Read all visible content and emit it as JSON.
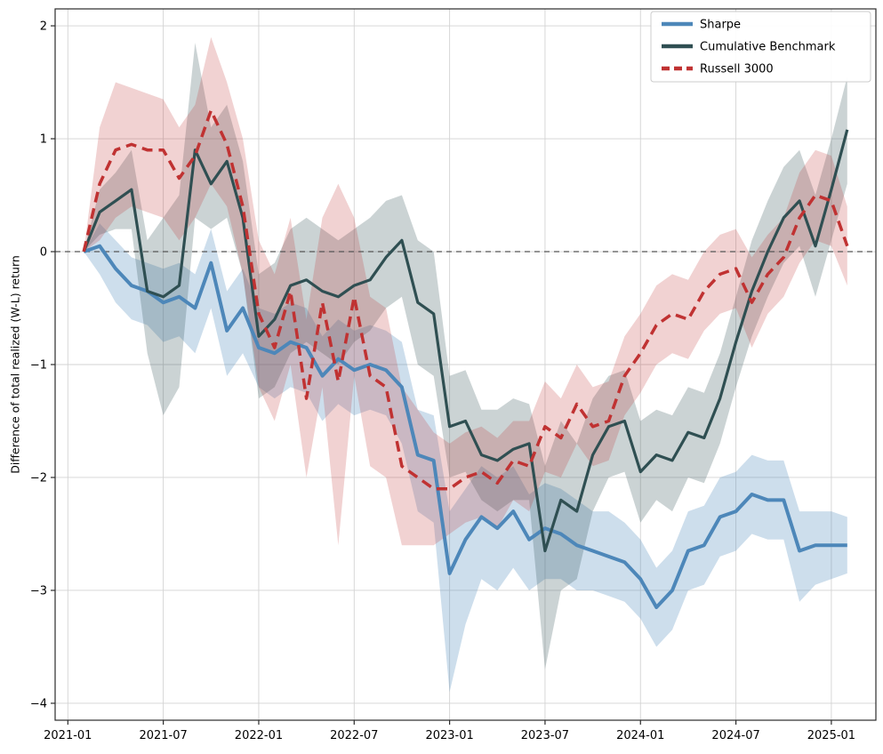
{
  "chart_data": {
    "type": "line",
    "ylabel": "Difference of total realized (W-L) return",
    "grid": true,
    "legend_position": "upper-right",
    "zero_line": 0,
    "zero_line_color": "#555555",
    "grid_color": "#d3d3d3",
    "spine_color": "#2b2b2b",
    "xlim": [
      -0.8,
      50.8
    ],
    "ylim": [
      -4.15,
      2.15
    ],
    "xticks": [
      {
        "pos": 0,
        "label": "2021-01"
      },
      {
        "pos": 6,
        "label": "2021-07"
      },
      {
        "pos": 12,
        "label": "2022-01"
      },
      {
        "pos": 18,
        "label": "2022-07"
      },
      {
        "pos": 24,
        "label": "2023-01"
      },
      {
        "pos": 30,
        "label": "2023-07"
      },
      {
        "pos": 36,
        "label": "2024-01"
      },
      {
        "pos": 42,
        "label": "2024-07"
      },
      {
        "pos": 48,
        "label": "2025-01"
      }
    ],
    "yticks": [
      {
        "value": 2,
        "label": "2"
      },
      {
        "value": 1,
        "label": "1"
      },
      {
        "value": 0,
        "label": "0"
      },
      {
        "value": -1,
        "label": "−1"
      },
      {
        "value": -2,
        "label": "−2"
      },
      {
        "value": -3,
        "label": "−3"
      },
      {
        "value": -4,
        "label": "−4"
      }
    ],
    "x_unit": "months-since-2021-01",
    "x": [
      1,
      2,
      3,
      4,
      5,
      6,
      7,
      8,
      9,
      10,
      11,
      12,
      13,
      14,
      15,
      16,
      17,
      18,
      19,
      20,
      21,
      22,
      23,
      24,
      25,
      26,
      27,
      28,
      29,
      30,
      31,
      32,
      33,
      34,
      35,
      36,
      37,
      38,
      39,
      40,
      41,
      42,
      43,
      44,
      45,
      46,
      47,
      48,
      49
    ],
    "series": [
      {
        "name": "Sharpe",
        "color": "#4d87b9",
        "line_width": 4,
        "dash": null,
        "band_opacity": 0.28,
        "values": [
          0.0,
          0.05,
          -0.15,
          -0.3,
          -0.35,
          -0.45,
          -0.4,
          -0.5,
          -0.1,
          -0.7,
          -0.5,
          -0.85,
          -0.9,
          -0.8,
          -0.85,
          -1.1,
          -0.95,
          -1.05,
          -1.0,
          -1.05,
          -1.2,
          -1.8,
          -1.85,
          -2.85,
          -2.55,
          -2.35,
          -2.45,
          -2.3,
          -2.55,
          -2.45,
          -2.5,
          -2.6,
          -2.65,
          -2.7,
          -2.75,
          -2.9,
          -3.15,
          -3.0,
          -2.65,
          -2.6,
          -2.35,
          -2.3,
          -2.15,
          -2.2,
          -2.2,
          -2.65,
          -2.6,
          -2.6,
          -2.6
        ],
        "band_lower": [
          0.0,
          -0.2,
          -0.45,
          -0.6,
          -0.65,
          -0.8,
          -0.75,
          -0.9,
          -0.5,
          -1.1,
          -0.9,
          -1.2,
          -1.3,
          -1.2,
          -1.25,
          -1.5,
          -1.35,
          -1.45,
          -1.4,
          -1.45,
          -1.7,
          -2.3,
          -2.4,
          -3.9,
          -3.3,
          -2.9,
          -3.0,
          -2.8,
          -3.0,
          -2.9,
          -2.9,
          -3.0,
          -3.0,
          -3.05,
          -3.1,
          -3.25,
          -3.5,
          -3.35,
          -3.0,
          -2.95,
          -2.7,
          -2.65,
          -2.5,
          -2.55,
          -2.55,
          -3.1,
          -2.95,
          -2.9,
          -2.85
        ],
        "band_upper": [
          0.0,
          0.25,
          0.1,
          -0.05,
          -0.1,
          -0.15,
          -0.1,
          -0.2,
          0.2,
          -0.35,
          -0.15,
          -0.5,
          -0.55,
          -0.45,
          -0.5,
          -0.75,
          -0.6,
          -0.7,
          -0.65,
          -0.7,
          -0.8,
          -1.4,
          -1.45,
          -2.3,
          -2.1,
          -1.9,
          -2.0,
          -1.9,
          -2.15,
          -2.05,
          -2.1,
          -2.2,
          -2.3,
          -2.3,
          -2.4,
          -2.55,
          -2.8,
          -2.65,
          -2.3,
          -2.25,
          -2.0,
          -1.95,
          -1.8,
          -1.85,
          -1.85,
          -2.3,
          -2.3,
          -2.3,
          -2.35
        ]
      },
      {
        "name": "Cumulative Benchmark",
        "color": "#2f4f52",
        "line_width": 3.2,
        "dash": null,
        "band_opacity": 0.25,
        "values": [
          0.0,
          0.35,
          0.45,
          0.55,
          -0.35,
          -0.4,
          -0.3,
          0.9,
          0.6,
          0.8,
          0.3,
          -0.75,
          -0.6,
          -0.3,
          -0.25,
          -0.35,
          -0.4,
          -0.3,
          -0.25,
          -0.05,
          0.1,
          -0.45,
          -0.55,
          -1.55,
          -1.5,
          -1.8,
          -1.85,
          -1.75,
          -1.7,
          -2.65,
          -2.2,
          -2.3,
          -1.8,
          -1.55,
          -1.5,
          -1.95,
          -1.8,
          -1.85,
          -1.6,
          -1.65,
          -1.3,
          -0.8,
          -0.35,
          0.0,
          0.3,
          0.45,
          0.05,
          0.55,
          1.08
        ],
        "band_lower": [
          0.0,
          0.15,
          0.2,
          0.2,
          -0.9,
          -1.45,
          -1.2,
          0.3,
          0.2,
          0.3,
          -0.2,
          -1.3,
          -1.2,
          -0.9,
          -0.8,
          -0.9,
          -1.0,
          -0.8,
          -0.7,
          -0.5,
          -0.4,
          -1.0,
          -1.1,
          -2.0,
          -1.95,
          -2.2,
          -2.3,
          -2.2,
          -2.2,
          -3.7,
          -3.0,
          -2.9,
          -2.3,
          -2.0,
          -1.95,
          -2.4,
          -2.2,
          -2.3,
          -2.0,
          -2.05,
          -1.7,
          -1.2,
          -0.75,
          -0.4,
          -0.1,
          0.05,
          -0.4,
          0.1,
          0.6
        ],
        "band_upper": [
          0.0,
          0.55,
          0.7,
          0.9,
          0.1,
          0.3,
          0.5,
          1.85,
          1.1,
          1.3,
          0.8,
          -0.2,
          -0.1,
          0.2,
          0.3,
          0.2,
          0.1,
          0.2,
          0.3,
          0.45,
          0.5,
          0.1,
          0.0,
          -1.1,
          -1.05,
          -1.4,
          -1.4,
          -1.3,
          -1.35,
          -1.9,
          -1.5,
          -1.7,
          -1.3,
          -1.1,
          -1.05,
          -1.5,
          -1.4,
          -1.45,
          -1.2,
          -1.25,
          -0.9,
          -0.4,
          0.1,
          0.45,
          0.75,
          0.9,
          0.5,
          1.0,
          1.55
        ]
      },
      {
        "name": "Russell 3000",
        "color": "#c03232",
        "line_width": 3.5,
        "dash": "12 7",
        "band_opacity": 0.22,
        "values": [
          0.0,
          0.6,
          0.9,
          0.95,
          0.9,
          0.9,
          0.65,
          0.85,
          1.25,
          0.95,
          0.4,
          -0.55,
          -0.85,
          -0.35,
          -1.3,
          -0.45,
          -1.15,
          -0.4,
          -1.1,
          -1.2,
          -1.9,
          -2.0,
          -2.1,
          -2.1,
          -2.0,
          -1.95,
          -2.05,
          -1.85,
          -1.9,
          -1.55,
          -1.65,
          -1.35,
          -1.55,
          -1.5,
          -1.1,
          -0.9,
          -0.65,
          -0.55,
          -0.6,
          -0.35,
          -0.2,
          -0.15,
          -0.45,
          -0.2,
          -0.05,
          0.3,
          0.5,
          0.45,
          0.05
        ],
        "band_lower": [
          0.0,
          0.1,
          0.3,
          0.4,
          0.35,
          0.3,
          0.1,
          0.3,
          0.6,
          0.4,
          -0.2,
          -1.2,
          -1.5,
          -1.0,
          -2.0,
          -1.2,
          -2.6,
          -1.1,
          -1.9,
          -2.0,
          -2.6,
          -2.6,
          -2.6,
          -2.5,
          -2.4,
          -2.35,
          -2.45,
          -2.2,
          -2.3,
          -1.95,
          -2.0,
          -1.7,
          -1.9,
          -1.85,
          -1.45,
          -1.25,
          -1.0,
          -0.9,
          -0.95,
          -0.7,
          -0.55,
          -0.5,
          -0.85,
          -0.55,
          -0.4,
          -0.1,
          0.1,
          0.05,
          -0.3
        ],
        "band_upper": [
          0.0,
          1.1,
          1.5,
          1.45,
          1.4,
          1.35,
          1.1,
          1.3,
          1.9,
          1.5,
          1.0,
          0.1,
          -0.2,
          0.3,
          -0.6,
          0.3,
          0.6,
          0.3,
          -0.4,
          -0.5,
          -1.2,
          -1.4,
          -1.6,
          -1.7,
          -1.6,
          -1.55,
          -1.65,
          -1.5,
          -1.5,
          -1.15,
          -1.3,
          -1.0,
          -1.2,
          -1.15,
          -0.75,
          -0.55,
          -0.3,
          -0.2,
          -0.25,
          0.0,
          0.15,
          0.2,
          -0.05,
          0.15,
          0.3,
          0.7,
          0.9,
          0.85,
          0.4
        ]
      }
    ],
    "legend": [
      "Sharpe",
      "Cumulative Benchmark",
      "Russell 3000"
    ]
  }
}
